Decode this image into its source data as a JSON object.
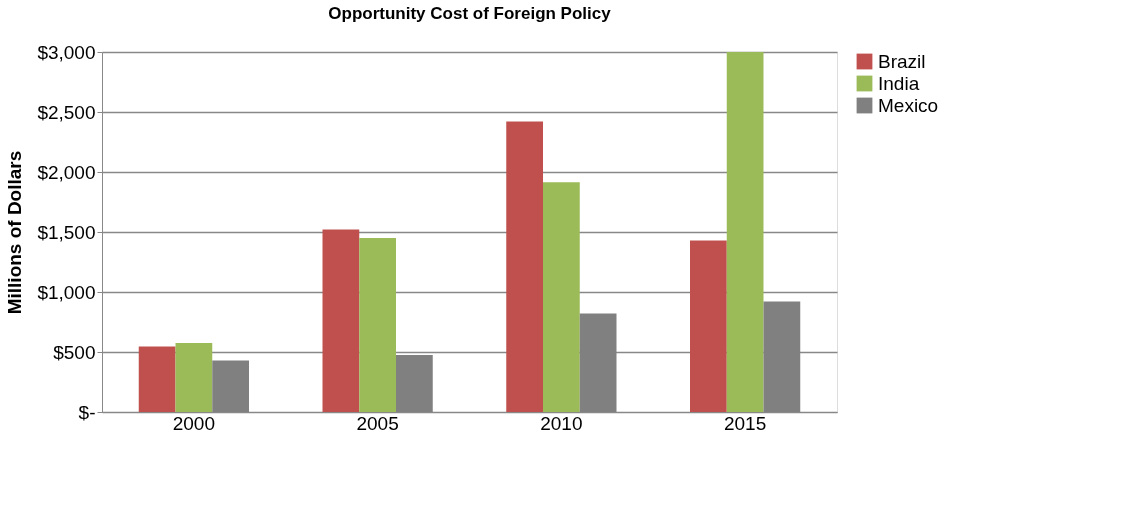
{
  "chart_data": {
    "type": "bar",
    "title": "Opportunity Cost of Foreign Policy",
    "ylabel": "Millions of Dollars",
    "categories": [
      "2000",
      "2005",
      "2010",
      "2015"
    ],
    "series": [
      {
        "name": "Brazil",
        "color": "#c0504d",
        "values": [
          545,
          1520,
          2420,
          1430
        ]
      },
      {
        "name": "India",
        "color": "#9bbb59",
        "values": [
          575,
          1450,
          1915,
          3000
        ]
      },
      {
        "name": "Mexico",
        "color": "#808080",
        "values": [
          430,
          475,
          820,
          920
        ]
      }
    ],
    "ylim": [
      0,
      3000
    ],
    "yticks": [
      {
        "value": 0,
        "label": "$-"
      },
      {
        "value": 500,
        "label": "$500"
      },
      {
        "value": 1000,
        "label": "$1,000"
      },
      {
        "value": 1500,
        "label": "$1,500"
      },
      {
        "value": 2000,
        "label": "$2,000"
      },
      {
        "value": 2500,
        "label": "$2,500"
      },
      {
        "value": 3000,
        "label": "$3,000"
      }
    ],
    "grid": "y",
    "legend": "right"
  }
}
